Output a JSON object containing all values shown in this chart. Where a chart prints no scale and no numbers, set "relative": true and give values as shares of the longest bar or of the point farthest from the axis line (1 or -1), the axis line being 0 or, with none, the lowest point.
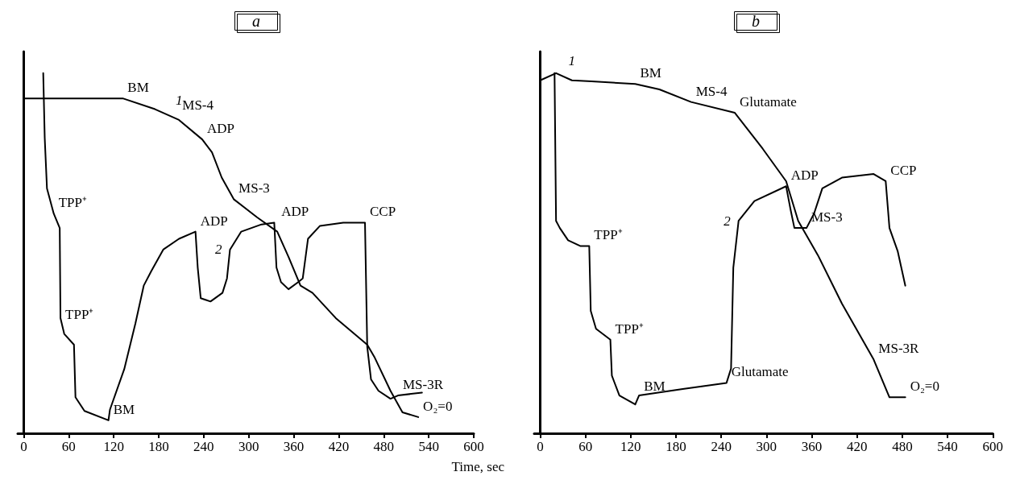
{
  "chart_data": [
    {
      "type": "line",
      "title": "a",
      "xlabel": "Time, sec",
      "relative": true,
      "xlim": [
        -8,
        600
      ],
      "xticks": [
        0,
        60,
        120,
        180,
        240,
        300,
        360,
        420,
        480,
        540,
        600
      ],
      "tick_labels": "x",
      "legend": false,
      "marker": "none",
      "line_style": "solid",
      "series": [
        {
          "name": "1",
          "color": "#000000",
          "x": [
            1,
            132,
            175,
            207,
            238,
            251,
            264,
            280,
            311,
            338,
            353,
            369,
            385,
            416,
            458,
            468,
            489,
            505,
            526
          ],
          "values": [
            0.93,
            0.93,
            0.9,
            0.87,
            0.816,
            0.78,
            0.71,
            0.65,
            0.6,
            0.56,
            0.49,
            0.41,
            0.39,
            0.32,
            0.246,
            0.21,
            0.118,
            0.058,
            0.045
          ]
        },
        {
          "name": "2",
          "color": "#000000",
          "x": [
            26,
            28,
            31,
            40,
            48,
            49,
            54,
            67,
            69,
            81,
            113,
            115,
            134,
            149,
            160,
            170,
            186,
            207,
            229,
            232,
            236,
            249,
            265,
            271,
            275,
            290,
            317,
            334,
            337,
            343,
            353,
            366,
            372,
            379,
            395,
            426,
            455,
            458,
            463,
            473,
            489,
            499,
            531
          ],
          "values": [
            1.0,
            0.82,
            0.68,
            0.61,
            0.57,
            0.32,
            0.276,
            0.246,
            0.1,
            0.062,
            0.036,
            0.066,
            0.178,
            0.306,
            0.41,
            0.45,
            0.51,
            0.54,
            0.56,
            0.46,
            0.375,
            0.366,
            0.39,
            0.43,
            0.51,
            0.56,
            0.58,
            0.585,
            0.46,
            0.42,
            0.4,
            0.42,
            0.43,
            0.54,
            0.576,
            0.585,
            0.585,
            0.24,
            0.15,
            0.118,
            0.096,
            0.105,
            0.113
          ]
        }
      ],
      "annotations": [
        {
          "text": "BM",
          "x": 132,
          "y": 0.93
        },
        {
          "text": "MS-4",
          "x": 205,
          "y": 0.88
        },
        {
          "text": "ADP",
          "x": 238,
          "y": 0.816
        },
        {
          "text": "MS-3",
          "x": 280,
          "y": 0.65
        },
        {
          "text": "ADP",
          "x": 229,
          "y": 0.56
        },
        {
          "text": "ADP",
          "x": 337,
          "y": 0.585
        },
        {
          "text": "CCP",
          "x": 455,
          "y": 0.585
        },
        {
          "text": "TPP⁺",
          "x": 40,
          "y": 0.61
        },
        {
          "text": "TPP⁺",
          "x": 49,
          "y": 0.3
        },
        {
          "text": "BM",
          "x": 113,
          "y": 0.036
        },
        {
          "text": "MS-3R",
          "x": 499,
          "y": 0.105
        },
        {
          "text": "O₂=0",
          "x": 526,
          "y": 0.045
        }
      ]
    },
    {
      "type": "line",
      "title": "b",
      "relative": true,
      "xlim": [
        -8,
        600
      ],
      "xticks": [
        0,
        60,
        120,
        180,
        240,
        300,
        360,
        420,
        480,
        540,
        600
      ],
      "tick_labels": "x",
      "legend": false,
      "marker": "none",
      "line_style": "solid",
      "series": [
        {
          "name": "1",
          "color": "#000000",
          "x": [
            0,
            21,
            42,
            68,
            126,
            158,
            200,
            258,
            295,
            326,
            342,
            368,
            400,
            442,
            463,
            484
          ],
          "values": [
            0.98,
            1.0,
            0.98,
            0.977,
            0.97,
            0.955,
            0.92,
            0.89,
            0.79,
            0.7,
            0.59,
            0.495,
            0.36,
            0.205,
            0.1,
            0.1
          ]
        },
        {
          "name": "2",
          "color": "#000000",
          "x": [
            19,
            21,
            26,
            37,
            53,
            65,
            67,
            74,
            93,
            95,
            105,
            126,
            131,
            189,
            247,
            253,
            256,
            263,
            284,
            326,
            332,
            337,
            353,
            363,
            374,
            400,
            442,
            458,
            463,
            474,
            484
          ],
          "values": [
            1.0,
            0.59,
            0.57,
            0.536,
            0.52,
            0.52,
            0.34,
            0.29,
            0.26,
            0.16,
            0.105,
            0.08,
            0.105,
            0.123,
            0.14,
            0.18,
            0.46,
            0.59,
            0.645,
            0.686,
            0.62,
            0.57,
            0.57,
            0.61,
            0.68,
            0.71,
            0.72,
            0.7,
            0.57,
            0.505,
            0.41
          ]
        }
      ],
      "annotations": [
        {
          "text": "BM",
          "x": 126,
          "y": 0.97
        },
        {
          "text": "MS-4",
          "x": 200,
          "y": 0.92
        },
        {
          "text": "Glutamate",
          "x": 258,
          "y": 0.89
        },
        {
          "text": "ADP",
          "x": 326,
          "y": 0.686
        },
        {
          "text": "CCP",
          "x": 458,
          "y": 0.7
        },
        {
          "text": "MS-3",
          "x": 353,
          "y": 0.57
        },
        {
          "text": "TPP⁺",
          "x": 65,
          "y": 0.52
        },
        {
          "text": "TPP⁺",
          "x": 93,
          "y": 0.26
        },
        {
          "text": "Glutamate",
          "x": 247,
          "y": 0.14
        },
        {
          "text": "BM",
          "x": 131,
          "y": 0.1
        },
        {
          "text": "MS-3R",
          "x": 442,
          "y": 0.205
        },
        {
          "text": "O₂=0",
          "x": 484,
          "y": 0.1
        }
      ]
    }
  ]
}
